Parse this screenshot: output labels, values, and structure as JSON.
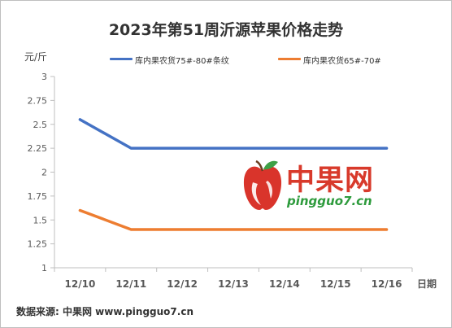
{
  "page": {
    "title": "2023年第51周沂源苹果价格走势",
    "unit_label": "元/斤",
    "source": "数据来源: 中果网 www.pingguo7.cn"
  },
  "watermark": {
    "brand_text": "中果网",
    "url": "pingguo7.cn"
  },
  "chart_data": {
    "type": "line",
    "title": "2023年第51周沂源苹果价格走势",
    "xlabel": "日期",
    "ylabel": "元/斤",
    "categories": [
      "12/10",
      "12/11",
      "12/12",
      "12/13",
      "12/14",
      "12/15",
      "12/16"
    ],
    "ylim": [
      1,
      3
    ],
    "yticks": [
      1,
      1.25,
      1.5,
      1.75,
      2,
      2.25,
      2.5,
      2.75,
      3
    ],
    "ytick_labels": [
      "1",
      "1.25",
      "1.5",
      "1.75",
      "2",
      "2.25",
      "2.5",
      "2.75",
      "3"
    ],
    "grid": false,
    "legend_position": "top",
    "series": [
      {
        "name": "库内果农货75#-80#条纹",
        "color": "#4472c4",
        "values": [
          2.55,
          2.25,
          2.25,
          2.25,
          2.25,
          2.25,
          2.25
        ]
      },
      {
        "name": "库内果农货65#-70#",
        "color": "#ed7d31",
        "values": [
          1.6,
          1.4,
          1.4,
          1.4,
          1.4,
          1.4,
          1.4
        ]
      }
    ]
  }
}
